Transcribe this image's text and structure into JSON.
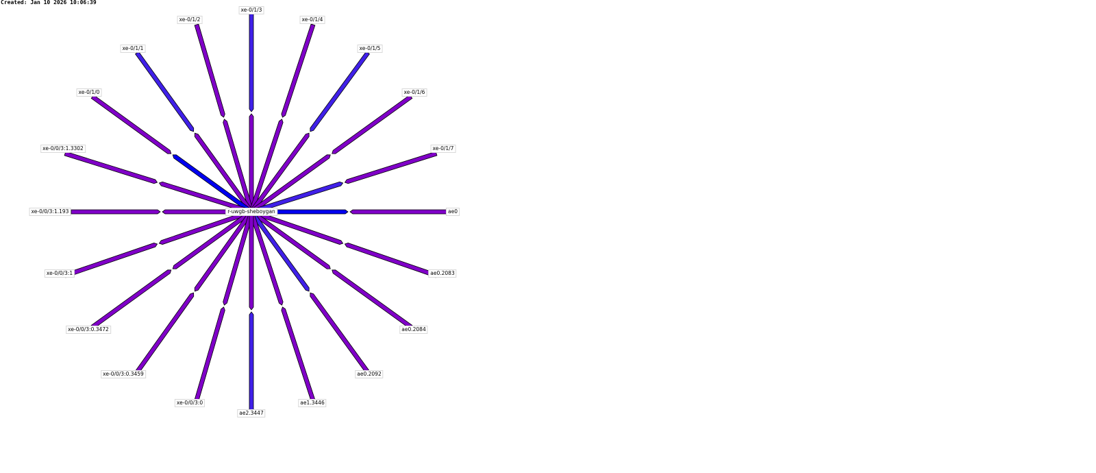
{
  "created": "Created: Jan 10 2026 10:06:39",
  "center_node": {
    "label": "r-uwgb-sheboygan"
  },
  "colors": {
    "purple": "#8000c8",
    "violet_blue": "#4020e8",
    "blue": "#0000f0",
    "outline": "#000000"
  },
  "links": [
    {
      "label": "xe-0/1/3",
      "outer": "violet_blue",
      "inner": "purple"
    },
    {
      "label": "xe-0/1/2",
      "outer": "purple",
      "inner": "purple"
    },
    {
      "label": "xe-0/1/4",
      "outer": "purple",
      "inner": "purple"
    },
    {
      "label": "xe-0/1/1",
      "outer": "violet_blue",
      "inner": "purple"
    },
    {
      "label": "xe-0/1/5",
      "outer": "violet_blue",
      "inner": "purple"
    },
    {
      "label": "xe-0/1/0",
      "outer": "purple",
      "inner": "blue"
    },
    {
      "label": "xe-0/1/6",
      "outer": "purple",
      "inner": "purple"
    },
    {
      "label": "xe-0/0/3:1.3302",
      "outer": "purple",
      "inner": "purple"
    },
    {
      "label": "xe-0/1/7",
      "outer": "purple",
      "inner": "violet_blue"
    },
    {
      "label": "xe-0/0/3:1.193",
      "outer": "purple",
      "inner": "purple"
    },
    {
      "label": "ae0",
      "outer": "purple",
      "inner": "blue"
    },
    {
      "label": "xe-0/0/3:1",
      "outer": "purple",
      "inner": "purple"
    },
    {
      "label": "ae0.2083",
      "outer": "purple",
      "inner": "purple"
    },
    {
      "label": "xe-0/0/3:0.3472",
      "outer": "purple",
      "inner": "purple"
    },
    {
      "label": "ae0.2084",
      "outer": "purple",
      "inner": "purple"
    },
    {
      "label": "xe-0/0/3:0.3459",
      "outer": "purple",
      "inner": "purple"
    },
    {
      "label": "ae0.2092",
      "outer": "purple",
      "inner": "violet_blue"
    },
    {
      "label": "xe-0/0/3:0",
      "outer": "purple",
      "inner": "purple"
    },
    {
      "label": "ae1.3446",
      "outer": "purple",
      "inner": "purple"
    },
    {
      "label": "ae2.3447",
      "outer": "violet_blue",
      "inner": "purple"
    }
  ]
}
